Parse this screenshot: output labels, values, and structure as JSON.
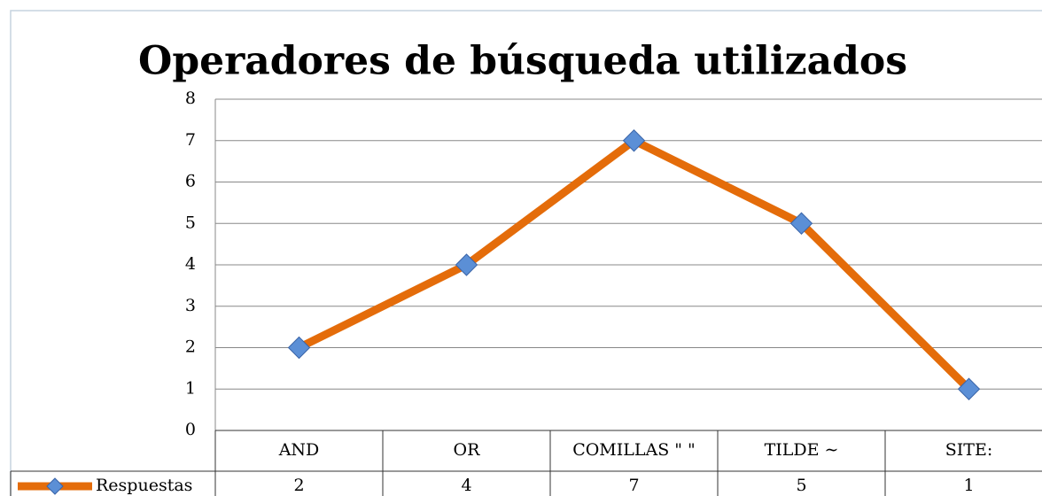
{
  "chart_data": {
    "type": "line",
    "title": "Operadores de búsqueda utilizados",
    "categories": [
      "AND",
      "OR",
      "COMILLAS \" \"",
      "TILDE ∼",
      "SITE:"
    ],
    "series": [
      {
        "name": "Respuestas",
        "color": "#e46c0a",
        "marker_color": "#5b8fd6",
        "values": [
          2,
          4,
          7,
          5,
          1
        ]
      }
    ],
    "ylim": [
      0,
      8
    ],
    "yticks": [
      0,
      1,
      2,
      3,
      4,
      5,
      6,
      7,
      8
    ],
    "grid": true,
    "data_table": true
  }
}
